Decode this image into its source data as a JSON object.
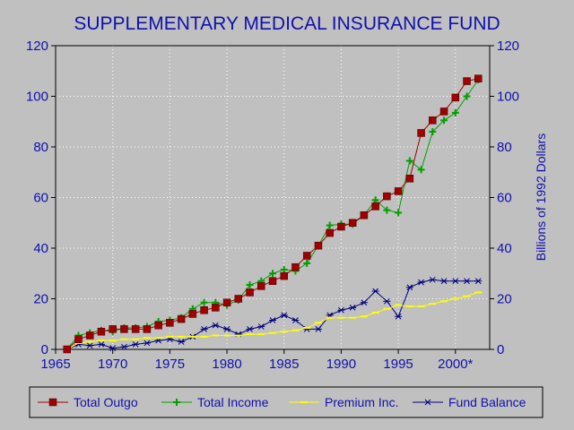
{
  "chart_data": {
    "type": "line",
    "title": "SUPPLEMENTARY MEDICAL INSURANCE FUND",
    "ylabel_right": "Billions of 1992 Dollars",
    "xlim": [
      1965,
      2003
    ],
    "ylim": [
      0,
      120
    ],
    "x_ticks": [
      1965,
      1970,
      1975,
      1980,
      1985,
      1990,
      1995,
      2000
    ],
    "x_tick_labels": [
      "1965",
      "1970",
      "1975",
      "1980",
      "1985",
      "1990",
      "1995",
      "2000*"
    ],
    "y_ticks": [
      0,
      20,
      40,
      60,
      80,
      100,
      120
    ],
    "y_tick_labels": [
      "0",
      "20",
      "40",
      "60",
      "80",
      "100",
      "120"
    ],
    "grid": true,
    "legend_position": "bottom",
    "series": [
      {
        "name": "Total Outgo",
        "color": "#a00000",
        "marker": "square",
        "x": [
          1966,
          1967,
          1968,
          1969,
          1970,
          1971,
          1972,
          1973,
          1974,
          1975,
          1976,
          1977,
          1978,
          1979,
          1980,
          1981,
          1982,
          1983,
          1984,
          1985,
          1986,
          1987,
          1988,
          1989,
          1990,
          1991,
          1992,
          1993,
          1994,
          1995,
          1996,
          1997,
          1998,
          1999,
          2000,
          2001,
          2002
        ],
        "values": [
          0,
          4,
          5.5,
          7,
          8,
          8,
          8,
          8,
          9.5,
          10.5,
          12,
          14,
          15.5,
          16.5,
          18.5,
          20,
          22.5,
          25,
          27,
          29,
          32.5,
          37,
          41,
          46,
          48.5,
          50,
          53,
          56.5,
          60.5,
          62.5,
          67.5,
          85.5,
          90.5,
          94,
          99.5,
          106,
          107
        ]
      },
      {
        "name": "Total Income",
        "color": "#00a000",
        "marker": "plus",
        "x": [
          1966,
          1967,
          1968,
          1969,
          1970,
          1971,
          1972,
          1973,
          1974,
          1975,
          1976,
          1977,
          1978,
          1979,
          1980,
          1981,
          1982,
          1983,
          1984,
          1985,
          1986,
          1987,
          1988,
          1989,
          1990,
          1991,
          1992,
          1993,
          1994,
          1995,
          1996,
          1997,
          1998,
          1999,
          2000,
          2001,
          2002
        ],
        "values": [
          0,
          5.5,
          6.5,
          7.5,
          7,
          8.5,
          8.5,
          9,
          11,
          11.5,
          12.5,
          16,
          18.5,
          18.5,
          17.5,
          19.5,
          25.5,
          27,
          30,
          31.5,
          31,
          34,
          41,
          49,
          49.5,
          49.5,
          53,
          59,
          55,
          54,
          74.5,
          71,
          86,
          90.5,
          93.5,
          100,
          106.5
        ]
      },
      {
        "name": "Premium Inc.",
        "color": "#ffff00",
        "marker": "dash",
        "x": [
          1966,
          1967,
          1968,
          1969,
          1970,
          1971,
          1972,
          1973,
          1974,
          1975,
          1976,
          1977,
          1978,
          1979,
          1980,
          1981,
          1982,
          1983,
          1984,
          1985,
          1986,
          1987,
          1988,
          1989,
          1990,
          1991,
          1992,
          1993,
          1994,
          1995,
          1996,
          1997,
          1998,
          1999,
          2000,
          2001,
          2002
        ],
        "values": [
          0,
          2.5,
          3,
          3.5,
          3.5,
          4,
          4,
          4.5,
          4.5,
          5,
          5,
          5,
          5,
          5.5,
          5.5,
          5.5,
          6,
          6,
          6.5,
          7,
          7.5,
          8.5,
          10.5,
          12.5,
          12.5,
          12.5,
          13,
          14.5,
          16,
          17.5,
          17,
          17,
          18,
          19,
          20,
          21,
          22.5
        ]
      },
      {
        "name": "Fund Balance",
        "color": "#000080",
        "marker": "asterisk",
        "x": [
          1966,
          1967,
          1968,
          1969,
          1970,
          1971,
          1972,
          1973,
          1974,
          1975,
          1976,
          1977,
          1978,
          1979,
          1980,
          1981,
          1982,
          1983,
          1984,
          1985,
          1986,
          1987,
          1988,
          1989,
          1990,
          1991,
          1992,
          1993,
          1994,
          1995,
          1996,
          1997,
          1998,
          1999,
          2000,
          2001,
          2002
        ],
        "values": [
          0,
          2,
          1.5,
          2,
          0.5,
          1,
          2,
          2.5,
          3.5,
          4,
          3,
          5,
          8,
          9.5,
          8,
          6,
          8,
          9,
          11.5,
          13.5,
          11.5,
          8,
          8,
          13.5,
          15.5,
          16.5,
          18.5,
          23,
          19,
          13,
          24.5,
          26.5,
          27.5,
          27,
          27,
          27,
          27
        ]
      }
    ]
  }
}
